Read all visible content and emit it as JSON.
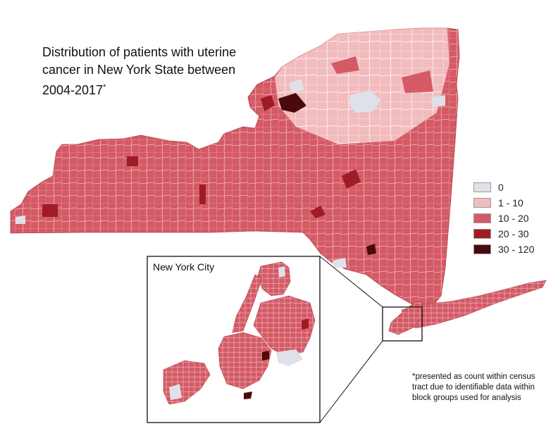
{
  "title": {
    "text": "Distribution of patients with uterine cancer in New York State between 2004-2017",
    "marker": "*"
  },
  "legend": {
    "items": [
      {
        "label": "0",
        "color": "#dfe1e8"
      },
      {
        "label": "1 - 10",
        "color": "#f2bcbf"
      },
      {
        "label": "10 - 20",
        "color": "#d45a66"
      },
      {
        "label": "20 - 30",
        "color": "#9e1c25"
      },
      {
        "label": "30 - 120",
        "color": "#4a0a0c"
      }
    ]
  },
  "inset": {
    "label": "New York City"
  },
  "footnote": {
    "text": "*presented as count within census tract due to identifiable data within block groups used for analysis"
  }
}
